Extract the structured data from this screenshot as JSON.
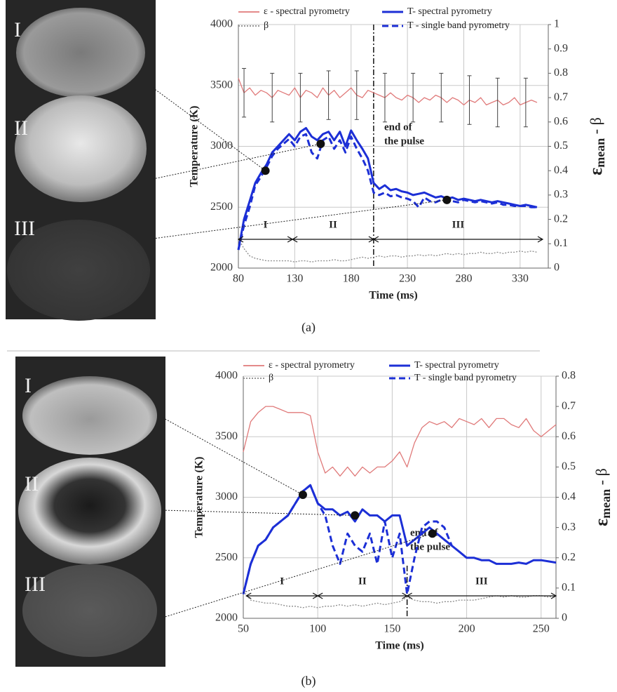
{
  "chart_data": [
    {
      "type": "line",
      "caption": "(a)",
      "xlabel": "Time (ms)",
      "ylabel": "Temperature (K)",
      "y2label": {
        "symbol": "ε",
        "sub": "mean",
        "rest": " - β"
      },
      "xlim": [
        80,
        355
      ],
      "xticks": [
        80,
        130,
        180,
        230,
        280,
        330
      ],
      "ylim": [
        2000,
        4000
      ],
      "yticks": [
        2000,
        2500,
        3000,
        3500,
        4000
      ],
      "y2lim": [
        0,
        1
      ],
      "y2ticks": [
        0,
        0.1,
        0.2,
        0.3,
        0.4,
        0.5,
        0.6,
        0.7,
        0.8,
        0.9,
        1
      ],
      "grid": true,
      "image_labels": [
        "I",
        "II",
        "III"
      ],
      "annotation": [
        "end of",
        "the pulse"
      ],
      "pulse_end": 200,
      "phases": [
        {
          "label": "I",
          "start": 80,
          "end": 128
        },
        {
          "label": "II",
          "start": 128,
          "end": 200
        },
        {
          "label": "III",
          "start": 200,
          "end": 350
        }
      ],
      "x": [
        80,
        85,
        90,
        95,
        100,
        105,
        110,
        115,
        120,
        125,
        130,
        135,
        140,
        145,
        150,
        155,
        160,
        165,
        170,
        175,
        180,
        185,
        190,
        195,
        200,
        205,
        210,
        215,
        220,
        225,
        230,
        235,
        240,
        245,
        250,
        255,
        260,
        265,
        270,
        275,
        280,
        285,
        290,
        295,
        300,
        305,
        310,
        315,
        320,
        325,
        330,
        335,
        340,
        345
      ],
      "series": [
        {
          "name": "ε  - spectral pyrometry",
          "color": "#e07a7a",
          "line_style": "solid",
          "axis": "y2",
          "values": [
            0.78,
            0.72,
            0.74,
            0.71,
            0.73,
            0.72,
            0.7,
            0.73,
            0.72,
            0.71,
            0.74,
            0.7,
            0.73,
            0.72,
            0.7,
            0.74,
            0.71,
            0.73,
            0.7,
            0.72,
            0.74,
            0.71,
            0.7,
            0.73,
            0.72,
            0.71,
            0.7,
            0.72,
            0.7,
            0.69,
            0.71,
            0.7,
            0.68,
            0.7,
            0.69,
            0.71,
            0.7,
            0.68,
            0.7,
            0.69,
            0.67,
            0.69,
            0.68,
            0.7,
            0.67,
            0.68,
            0.69,
            0.67,
            0.68,
            0.7,
            0.67,
            0.68,
            0.69,
            0.68
          ]
        },
        {
          "name": "β",
          "color": "#8a8a8a",
          "line_style": "dotted",
          "axis": "y2",
          "values": [
            0.12,
            0.08,
            0.05,
            0.04,
            0.035,
            0.03,
            0.03,
            0.03,
            0.03,
            0.03,
            0.025,
            0.03,
            0.03,
            0.025,
            0.03,
            0.03,
            0.03,
            0.035,
            0.03,
            0.03,
            0.035,
            0.04,
            0.045,
            0.04,
            0.045,
            0.05,
            0.045,
            0.05,
            0.05,
            0.045,
            0.05,
            0.05,
            0.055,
            0.05,
            0.055,
            0.05,
            0.055,
            0.06,
            0.055,
            0.06,
            0.055,
            0.06,
            0.06,
            0.065,
            0.06,
            0.06,
            0.065,
            0.06,
            0.065,
            0.065,
            0.07,
            0.065,
            0.07,
            0.065
          ]
        },
        {
          "name": "T- spectral pyrometry",
          "color": "#1c2fd6",
          "line_style": "solid",
          "values": [
            2150,
            2400,
            2550,
            2700,
            2780,
            2850,
            2950,
            3000,
            3050,
            3100,
            3050,
            3120,
            3150,
            3080,
            3050,
            3100,
            3120,
            3050,
            3120,
            3000,
            3130,
            3050,
            2980,
            2900,
            2700,
            2650,
            2680,
            2640,
            2650,
            2630,
            2620,
            2600,
            2610,
            2620,
            2600,
            2580,
            2590,
            2570,
            2580,
            2560,
            2570,
            2560,
            2550,
            2560,
            2550,
            2540,
            2550,
            2540,
            2530,
            2520,
            2510,
            2520,
            2510,
            2500
          ]
        },
        {
          "name": "T - single band pyrometry",
          "color": "#1c2fd6",
          "line_style": "dashed",
          "values": [
            2150,
            2350,
            2500,
            2680,
            2750,
            2830,
            2920,
            2980,
            3020,
            3060,
            3000,
            3080,
            3100,
            2950,
            2900,
            3050,
            3080,
            2980,
            3050,
            2950,
            3080,
            2980,
            2900,
            2800,
            2620,
            2600,
            2620,
            2590,
            2600,
            2580,
            2570,
            2550,
            2500,
            2580,
            2550,
            2540,
            2560,
            2540,
            2550,
            2540,
            2560,
            2550,
            2540,
            2550,
            2540,
            2530,
            2540,
            2520,
            2520,
            2510,
            2510,
            2510,
            2500,
            2500
          ]
        }
      ],
      "error_bars": {
        "x": [
          85,
          110,
          135,
          160,
          185,
          210,
          235,
          260,
          285,
          310,
          335
        ],
        "values": [
          0.72,
          0.7,
          0.7,
          0.71,
          0.71,
          0.7,
          0.7,
          0.7,
          0.69,
          0.68,
          0.68
        ],
        "errors": [
          0.1,
          0.1,
          0.1,
          0.1,
          0.1,
          0.1,
          0.1,
          0.1,
          0.1,
          0.1,
          0.1
        ]
      },
      "markers": {
        "x": [
          104,
          153,
          265
        ],
        "values": [
          2800,
          3020,
          2560
        ]
      }
    },
    {
      "type": "line",
      "caption": "(b)",
      "xlabel": "Time (ms)",
      "ylabel": "Temperature (K)",
      "y2label": {
        "symbol": "ε",
        "sub": "mean",
        "rest": " - β"
      },
      "xlim": [
        50,
        260
      ],
      "xticks": [
        50,
        100,
        150,
        200,
        250
      ],
      "ylim": [
        2000,
        4000
      ],
      "yticks": [
        2000,
        2500,
        3000,
        3500,
        4000
      ],
      "y2lim": [
        0,
        0.8
      ],
      "y2ticks": [
        0,
        0.1,
        0.2,
        0.3,
        0.4,
        0.5,
        0.6,
        0.7,
        0.8
      ],
      "grid": true,
      "image_labels": [
        "I",
        "II",
        "III"
      ],
      "annotation": [
        "end of",
        "the pulse"
      ],
      "pulse_end": 160,
      "phases": [
        {
          "label": "I",
          "start": 52,
          "end": 100
        },
        {
          "label": "II",
          "start": 100,
          "end": 160
        },
        {
          "label": "III",
          "start": 160,
          "end": 260
        }
      ],
      "x": [
        50,
        55,
        60,
        65,
        70,
        75,
        80,
        85,
        90,
        95,
        100,
        105,
        110,
        115,
        120,
        125,
        130,
        135,
        140,
        145,
        150,
        155,
        160,
        165,
        170,
        175,
        180,
        185,
        190,
        195,
        200,
        205,
        210,
        215,
        220,
        225,
        230,
        235,
        240,
        245,
        250,
        255,
        260
      ],
      "series": [
        {
          "name": "ε  - spectral pyrometry",
          "color": "#e07a7a",
          "line_style": "solid",
          "axis": "y2",
          "values": [
            0.55,
            0.65,
            0.68,
            0.7,
            0.7,
            0.69,
            0.68,
            0.68,
            0.68,
            0.67,
            0.55,
            0.48,
            0.5,
            0.47,
            0.5,
            0.47,
            0.5,
            0.48,
            0.5,
            0.5,
            0.52,
            0.55,
            0.5,
            0.58,
            0.63,
            0.65,
            0.64,
            0.65,
            0.63,
            0.66,
            0.65,
            0.64,
            0.66,
            0.63,
            0.66,
            0.66,
            0.64,
            0.63,
            0.66,
            0.62,
            0.6,
            0.62,
            0.64
          ]
        },
        {
          "name": "β",
          "color": "#8a8a8a",
          "line_style": "dotted",
          "axis": "y2",
          "values": [
            0.09,
            0.06,
            0.055,
            0.05,
            0.05,
            0.045,
            0.04,
            0.04,
            0.035,
            0.04,
            0.035,
            0.04,
            0.04,
            0.045,
            0.04,
            0.045,
            0.04,
            0.045,
            0.05,
            0.045,
            0.05,
            0.055,
            0.07,
            0.06,
            0.055,
            0.055,
            0.05,
            0.055,
            0.055,
            0.06,
            0.06,
            0.06,
            0.065,
            0.07,
            0.075,
            0.07,
            0.075,
            0.07,
            0.07,
            0.075,
            0.075,
            0.07,
            0.075
          ]
        },
        {
          "name": "T- spectral pyrometry",
          "color": "#1c2fd6",
          "line_style": "solid",
          "values": [
            2200,
            2450,
            2600,
            2650,
            2750,
            2800,
            2850,
            2950,
            3050,
            3100,
            2950,
            2900,
            2900,
            2850,
            2880,
            2800,
            2900,
            2850,
            2850,
            2800,
            2850,
            2850,
            2600,
            2650,
            2700,
            2750,
            2700,
            2650,
            2600,
            2550,
            2500,
            2500,
            2480,
            2480,
            2450,
            2450,
            2450,
            2460,
            2450,
            2480,
            2480,
            2470,
            2460
          ]
        },
        {
          "name": "T - single band pyrometry",
          "color": "#1c2fd6",
          "line_style": "dashed",
          "values": [
            2200,
            2450,
            2600,
            2650,
            2750,
            2800,
            2850,
            2950,
            3050,
            3100,
            2950,
            2850,
            2600,
            2450,
            2700,
            2600,
            2550,
            2700,
            2450,
            2800,
            2500,
            2700,
            2200,
            2500,
            2750,
            2800,
            2800,
            2750,
            2600,
            null,
            null,
            null,
            null,
            null,
            null,
            null,
            null,
            null,
            null,
            null,
            null,
            null,
            null
          ]
        }
      ],
      "markers": {
        "x": [
          90,
          125,
          177
        ],
        "values": [
          3020,
          2850,
          2700
        ]
      }
    }
  ]
}
